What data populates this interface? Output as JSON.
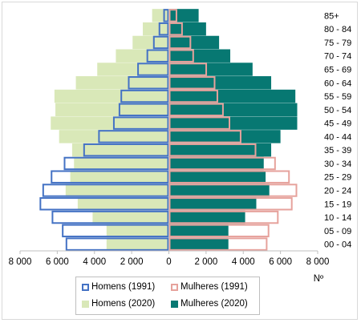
{
  "chart_data": {
    "type": "bar",
    "orientation": "horizontal-pyramid",
    "categories": [
      "00 - 04",
      "05 - 09",
      "10 - 14",
      "15 - 19",
      "20 - 24",
      "25 - 29",
      "30 - 34",
      "35 - 39",
      "40 - 44",
      "45 - 49",
      "50 - 54",
      "55 - 59",
      "60 - 64",
      "65 - 69",
      "70 - 74",
      "75 - 79",
      "80 - 84",
      "85+"
    ],
    "series": [
      {
        "name": "Homens (1991)",
        "side": "left",
        "style": "outline",
        "color": "#4472c4",
        "values": [
          5550,
          5750,
          6300,
          6950,
          6800,
          6350,
          5650,
          4600,
          3800,
          3000,
          2700,
          2600,
          2200,
          1700,
          1200,
          850,
          550,
          300
        ]
      },
      {
        "name": "Mulheres (1991)",
        "side": "right",
        "style": "outline",
        "color": "#e6a29c",
        "values": [
          5300,
          5400,
          5900,
          6650,
          6900,
          6500,
          5750,
          4700,
          3900,
          3300,
          2950,
          2650,
          2500,
          2050,
          1350,
          1200,
          750,
          450
        ]
      },
      {
        "name": "Homens (2020)",
        "side": "left",
        "style": "fill",
        "color": "#d9e8b8",
        "values": [
          3350,
          3350,
          4100,
          4900,
          5550,
          5300,
          5100,
          5200,
          5900,
          6350,
          6100,
          6150,
          5000,
          3850,
          2850,
          1950,
          1400,
          900
        ]
      },
      {
        "name": "Mulheres (2020)",
        "side": "right",
        "style": "fill",
        "color": "#077872",
        "values": [
          3200,
          3200,
          4100,
          4700,
          5400,
          5200,
          5100,
          5500,
          6000,
          6900,
          6900,
          6800,
          5500,
          4500,
          3300,
          2700,
          2000,
          1600
        ]
      }
    ],
    "xlim": [
      -8000,
      8000
    ],
    "xticks": [
      "8 000",
      "6 000",
      "4 000",
      "2 000",
      "0",
      "2 000",
      "4 000",
      "6 000",
      "8 000"
    ],
    "xlabel": "Nº",
    "legend_position": "bottom",
    "grid": false
  }
}
